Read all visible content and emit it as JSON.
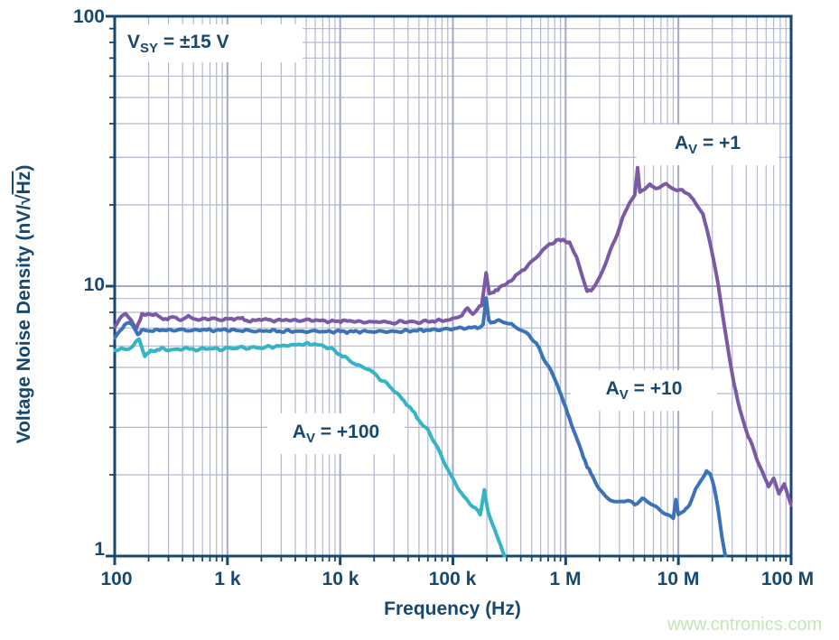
{
  "watermark": "www.cntronics.com",
  "colors": {
    "axis": "#17486F",
    "grid_minor": "#b3b7d2",
    "grid_major": "#a3a8c7",
    "watermark_text": "#c3e7b3",
    "annotation_text": "#17486F"
  },
  "chart_data": {
    "type": "line",
    "xscale": "log",
    "yscale": "log",
    "xlim": [
      100,
      100000000
    ],
    "ylim": [
      1,
      100
    ],
    "xlabel": "Frequency (Hz)",
    "ylabel": "Voltage Noise Density (nV/√Hz)",
    "ylabel_parts": {
      "pre": "Voltage Noise Density (nV/",
      "sqrt": "√",
      "radicand": "Hz",
      "post": ")"
    },
    "x_tick_labels": [
      "100",
      "1 k",
      "10 k",
      "100 k",
      "1 M",
      "10 M",
      "100 M"
    ],
    "y_tick_labels": [
      "100",
      "10",
      "1"
    ],
    "grid": true,
    "legend": "none (inline annotations)",
    "annotations": [
      {
        "prefix": "V",
        "sub": "SY",
        "rest": " = ±15 V"
      },
      {
        "prefix": "A",
        "sub": "V",
        "rest": " = +1"
      },
      {
        "prefix": "A",
        "sub": "V",
        "rest": " = +10"
      },
      {
        "prefix": "A",
        "sub": "V",
        "rest": " = +100"
      }
    ],
    "series": [
      {
        "name": "AV = +1",
        "color": "#7B5AA5",
        "points": [
          [
            100,
            7.1
          ],
          [
            115,
            7.7
          ],
          [
            125,
            7.9
          ],
          [
            140,
            7.5
          ],
          [
            155,
            6.9
          ],
          [
            175,
            7.9
          ],
          [
            200,
            7.8
          ],
          [
            230,
            7.9
          ],
          [
            270,
            7.5
          ],
          [
            320,
            7.7
          ],
          [
            380,
            7.5
          ],
          [
            450,
            7.7
          ],
          [
            550,
            7.5
          ],
          [
            700,
            7.6
          ],
          [
            850,
            7.5
          ],
          [
            1000,
            7.55
          ],
          [
            1300,
            7.6
          ],
          [
            1600,
            7.4
          ],
          [
            2000,
            7.55
          ],
          [
            2600,
            7.45
          ],
          [
            3300,
            7.5
          ],
          [
            4200,
            7.45
          ],
          [
            5300,
            7.5
          ],
          [
            6700,
            7.45
          ],
          [
            8500,
            7.4
          ],
          [
            11000,
            7.45
          ],
          [
            14000,
            7.4
          ],
          [
            18000,
            7.35
          ],
          [
            23000,
            7.4
          ],
          [
            29000,
            7.3
          ],
          [
            37000,
            7.4
          ],
          [
            47000,
            7.35
          ],
          [
            60000,
            7.4
          ],
          [
            75000,
            7.45
          ],
          [
            95000,
            7.5
          ],
          [
            120000,
            7.8
          ],
          [
            135000,
            8.3
          ],
          [
            150000,
            7.9
          ],
          [
            165000,
            8.2
          ],
          [
            180000,
            8.5
          ],
          [
            197000,
            11.2
          ],
          [
            210000,
            9.3
          ],
          [
            230000,
            9.5
          ],
          [
            260000,
            9.9
          ],
          [
            300000,
            10.2
          ],
          [
            360000,
            10.9
          ],
          [
            430000,
            11.6
          ],
          [
            520000,
            12.5
          ],
          [
            620000,
            13.5
          ],
          [
            720000,
            14.3
          ],
          [
            830000,
            14.7
          ],
          [
            950000,
            14.9
          ],
          [
            1080000,
            14.4
          ],
          [
            1250000,
            12.9
          ],
          [
            1400000,
            10.9
          ],
          [
            1550000,
            9.6
          ],
          [
            1750000,
            9.8
          ],
          [
            2000000,
            10.7
          ],
          [
            2350000,
            12.7
          ],
          [
            2750000,
            15.0
          ],
          [
            3200000,
            17.8
          ],
          [
            3700000,
            20.5
          ],
          [
            4100000,
            21.8
          ],
          [
            4350000,
            27.5
          ],
          [
            4550000,
            22.3
          ],
          [
            5000000,
            23.0
          ],
          [
            5600000,
            23.6
          ],
          [
            6300000,
            23.1
          ],
          [
            7000000,
            23.4
          ],
          [
            7800000,
            23.9
          ],
          [
            8700000,
            23.3
          ],
          [
            9700000,
            22.5
          ],
          [
            10800000,
            22.9
          ],
          [
            12000000,
            22.0
          ],
          [
            13500000,
            21.0
          ],
          [
            15000000,
            19.8
          ],
          [
            16500000,
            18.3
          ],
          [
            18000000,
            16.2
          ],
          [
            20000000,
            13.2
          ],
          [
            22500000,
            10.2
          ],
          [
            25000000,
            7.6
          ],
          [
            28000000,
            5.6
          ],
          [
            31000000,
            4.4
          ],
          [
            35000000,
            3.5
          ],
          [
            40000000,
            2.9
          ],
          [
            45000000,
            2.6
          ],
          [
            50000000,
            2.25
          ],
          [
            56000000,
            2.05
          ],
          [
            63000000,
            1.8
          ],
          [
            70000000,
            1.95
          ],
          [
            78000000,
            1.7
          ],
          [
            87000000,
            1.85
          ],
          [
            100000000,
            1.55
          ]
        ]
      },
      {
        "name": "AV = +10",
        "color": "#3C72B8",
        "points": [
          [
            100,
            6.4
          ],
          [
            112,
            6.9
          ],
          [
            128,
            7.3
          ],
          [
            145,
            7.2
          ],
          [
            160,
            6.6
          ],
          [
            180,
            6.9
          ],
          [
            210,
            6.8
          ],
          [
            250,
            6.9
          ],
          [
            300,
            6.85
          ],
          [
            380,
            6.9
          ],
          [
            470,
            6.85
          ],
          [
            600,
            6.9
          ],
          [
            750,
            6.85
          ],
          [
            950,
            6.9
          ],
          [
            1200,
            6.85
          ],
          [
            1500,
            6.85
          ],
          [
            1900,
            6.8
          ],
          [
            2400,
            6.85
          ],
          [
            3000,
            6.8
          ],
          [
            3800,
            6.82
          ],
          [
            4800,
            6.78
          ],
          [
            6000,
            6.82
          ],
          [
            7600,
            6.78
          ],
          [
            9600,
            6.8
          ],
          [
            12000,
            6.78
          ],
          [
            15000,
            6.8
          ],
          [
            19000,
            6.78
          ],
          [
            24000,
            6.8
          ],
          [
            30000,
            6.78
          ],
          [
            38000,
            6.82
          ],
          [
            48000,
            6.85
          ],
          [
            60000,
            6.88
          ],
          [
            76000,
            6.9
          ],
          [
            96000,
            6.95
          ],
          [
            120000,
            7.0
          ],
          [
            145000,
            7.0
          ],
          [
            165000,
            7.05
          ],
          [
            185000,
            7.2
          ],
          [
            197000,
            9.0
          ],
          [
            208000,
            7.45
          ],
          [
            225000,
            7.35
          ],
          [
            255000,
            7.45
          ],
          [
            290000,
            7.35
          ],
          [
            330000,
            7.2
          ],
          [
            400000,
            6.9
          ],
          [
            470000,
            6.6
          ],
          [
            550000,
            6.1
          ],
          [
            640000,
            5.4
          ],
          [
            740000,
            4.85
          ],
          [
            850000,
            4.3
          ],
          [
            960000,
            3.7
          ],
          [
            1080000,
            3.25
          ],
          [
            1220000,
            2.8
          ],
          [
            1380000,
            2.45
          ],
          [
            1550000,
            2.15
          ],
          [
            1750000,
            1.95
          ],
          [
            1980000,
            1.78
          ],
          [
            2250000,
            1.66
          ],
          [
            2600000,
            1.6
          ],
          [
            3000000,
            1.58
          ],
          [
            3500000,
            1.61
          ],
          [
            4100000,
            1.56
          ],
          [
            4800000,
            1.63
          ],
          [
            5500000,
            1.58
          ],
          [
            6300000,
            1.52
          ],
          [
            7200000,
            1.46
          ],
          [
            8200000,
            1.41
          ],
          [
            9000000,
            1.38
          ],
          [
            9500000,
            1.62
          ],
          [
            10000000,
            1.43
          ],
          [
            11200000,
            1.46
          ],
          [
            12600000,
            1.56
          ],
          [
            14200000,
            1.76
          ],
          [
            16000000,
            1.92
          ],
          [
            17800000,
            2.06
          ],
          [
            19200000,
            2.0
          ],
          [
            20700000,
            1.82
          ],
          [
            22500000,
            1.5
          ],
          [
            24300000,
            1.18
          ],
          [
            26000000,
            1.0
          ],
          [
            27000000,
            0.82
          ]
        ]
      },
      {
        "name": "AV = +100",
        "color": "#35B4C6",
        "points": [
          [
            100,
            5.8
          ],
          [
            120,
            5.85
          ],
          [
            140,
            5.9
          ],
          [
            165,
            6.4
          ],
          [
            185,
            5.5
          ],
          [
            210,
            5.75
          ],
          [
            260,
            5.85
          ],
          [
            330,
            5.8
          ],
          [
            420,
            5.88
          ],
          [
            530,
            5.82
          ],
          [
            680,
            5.88
          ],
          [
            860,
            5.84
          ],
          [
            1100,
            5.9
          ],
          [
            1400,
            5.92
          ],
          [
            1800,
            5.9
          ],
          [
            2300,
            5.95
          ],
          [
            2900,
            6.0
          ],
          [
            3700,
            6.05
          ],
          [
            4700,
            6.1
          ],
          [
            5900,
            6.1
          ],
          [
            7200,
            6.0
          ],
          [
            8400,
            5.85
          ],
          [
            9700,
            5.62
          ],
          [
            11500,
            5.4
          ],
          [
            13500,
            5.15
          ],
          [
            16000,
            5.0
          ],
          [
            18500,
            4.9
          ],
          [
            21500,
            4.6
          ],
          [
            26000,
            4.35
          ],
          [
            31000,
            4.05
          ],
          [
            37000,
            3.75
          ],
          [
            44000,
            3.45
          ],
          [
            52000,
            3.12
          ],
          [
            60000,
            2.92
          ],
          [
            70000,
            2.6
          ],
          [
            82000,
            2.28
          ],
          [
            95000,
            2.0
          ],
          [
            110000,
            1.8
          ],
          [
            125000,
            1.66
          ],
          [
            142000,
            1.56
          ],
          [
            158000,
            1.5
          ],
          [
            175000,
            1.42
          ],
          [
            190000,
            1.76
          ],
          [
            205000,
            1.46
          ],
          [
            225000,
            1.3
          ],
          [
            245000,
            1.2
          ],
          [
            265000,
            1.1
          ],
          [
            285000,
            1.0
          ],
          [
            300000,
            0.9
          ]
        ]
      }
    ]
  }
}
